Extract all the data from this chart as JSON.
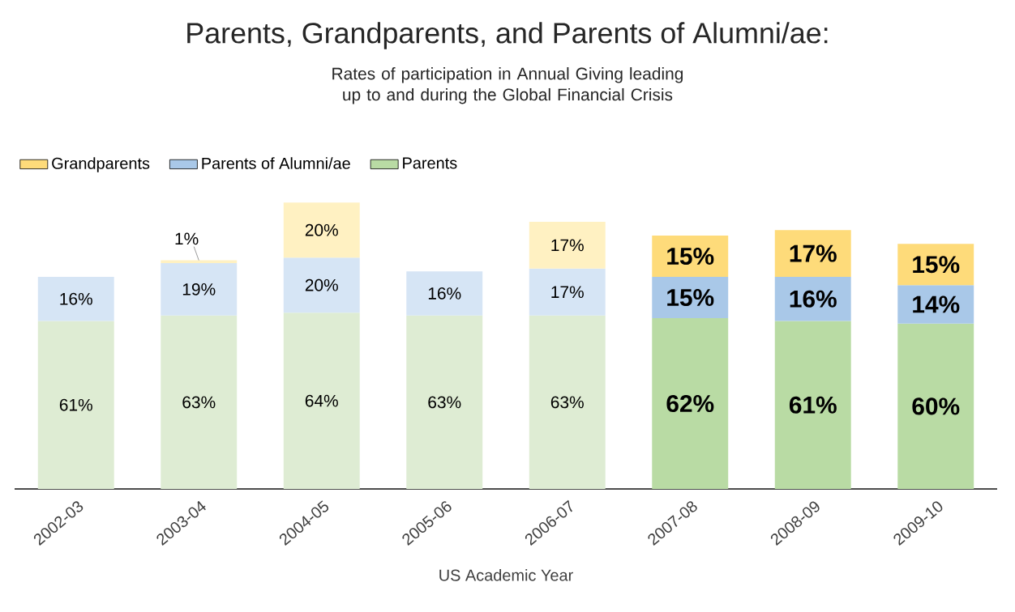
{
  "chart_data": {
    "type": "bar",
    "stacked": true,
    "title": "Parents, Grandparents, and Parents of Alumni/ae:",
    "subtitle": "Rates of participation in Annual Giving leading up to and during the Global Financial Crisis",
    "xlabel": "US Academic Year",
    "categories": [
      "2002-03",
      "2003-04",
      "2004-05",
      "2005-06",
      "2006-07",
      "2007-08",
      "2008-09",
      "2009-10"
    ],
    "legend": "top left",
    "series": [
      {
        "name": "Parents",
        "color": "#b9dba4",
        "colors": [
          "#deecd3",
          "#deecd3",
          "#deecd3",
          "#deecd3",
          "#deecd3",
          "#b9dba4",
          "#b9dba4",
          "#b9dba4"
        ],
        "values": [
          61,
          63,
          64,
          63,
          63,
          62,
          61,
          60
        ],
        "value_labels": [
          "61%",
          "63%",
          "64%",
          "63%",
          "63%",
          "62%",
          "61%",
          "60%"
        ]
      },
      {
        "name": "Parents of Alumni/ae",
        "color": "#a9c8e8",
        "colors": [
          "#d6e5f5",
          "#d6e5f5",
          "#d6e5f5",
          "#d6e5f5",
          "#d6e5f5",
          "#a9c8e8",
          "#a9c8e8",
          "#a9c8e8"
        ],
        "values": [
          16,
          19,
          20,
          16,
          17,
          15,
          16,
          14
        ],
        "value_labels": [
          "16%",
          "19%",
          "20%",
          "16%",
          "17%",
          "15%",
          "16%",
          "14%"
        ]
      },
      {
        "name": "Grandparents",
        "color": "#fedb7a",
        "colors": [
          "#fff1c2",
          "#fff1c2",
          "#fff1c2",
          "#fff1c2",
          "#fff1c2",
          "#fedb7a",
          "#fedb7a",
          "#fedb7a"
        ],
        "values": [
          null,
          1,
          20,
          null,
          17,
          15,
          17,
          15
        ],
        "value_labels": [
          null,
          "1%",
          "20%",
          null,
          "17%",
          "15%",
          "17%",
          "15%"
        ]
      }
    ]
  }
}
